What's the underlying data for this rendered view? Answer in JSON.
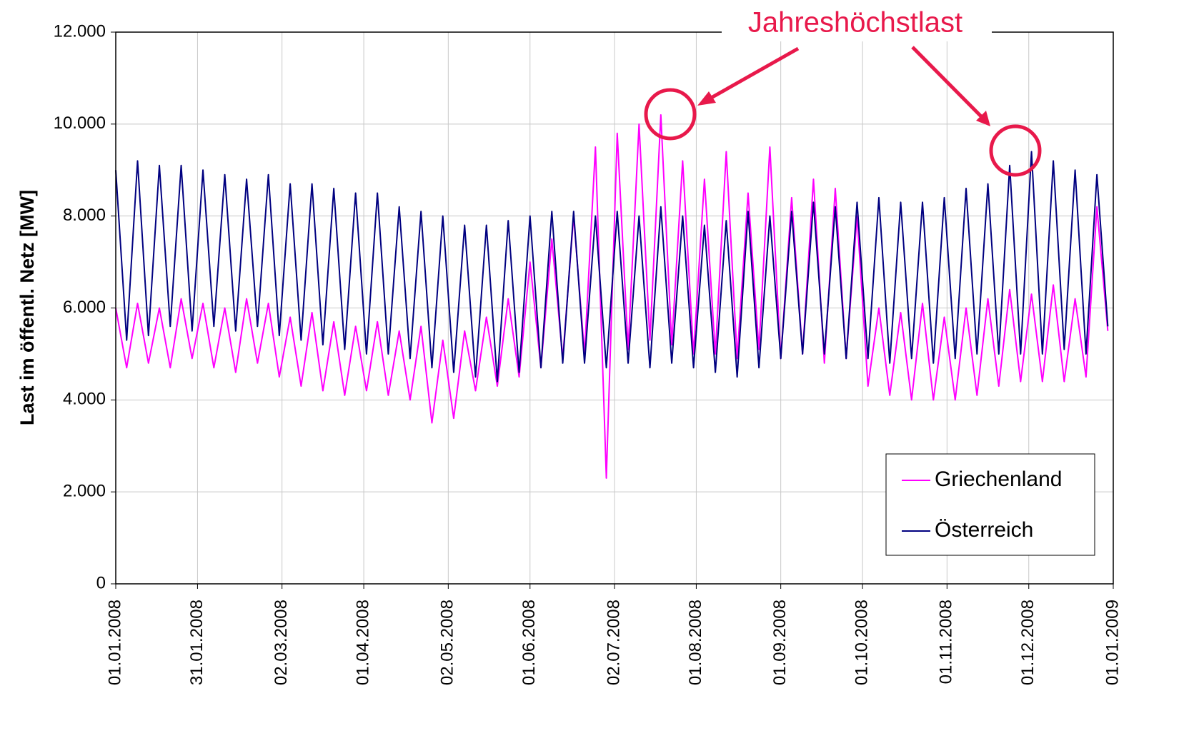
{
  "chart_data": {
    "type": "line",
    "ylabel": "Last im öffentl. Netz [MW]",
    "annotation": "Jahreshöchstlast",
    "ylim": [
      0,
      12000
    ],
    "yticks": [
      0,
      {
        "value": 2000,
        "label": "2.000"
      },
      {
        "value": 4000,
        "label": "4.000"
      },
      {
        "value": 6000,
        "label": "6.000"
      },
      {
        "value": 8000,
        "label": "8.000"
      },
      {
        "value": 10000,
        "label": "10.000"
      },
      {
        "value": 12000,
        "label": "12.000"
      }
    ],
    "xlim": [
      "01.01.2008",
      "01.01.2009"
    ],
    "xticks": [
      "01.01.2008",
      "31.01.2008",
      "02.03.2008",
      "01.04.2008",
      "02.05.2008",
      "01.06.2008",
      "02.07.2008",
      "01.08.2008",
      "01.09.2008",
      "01.10.2008",
      "01.11.2008",
      "01.12.2008",
      "01.01.2009"
    ],
    "grid": true,
    "legend": "lower right",
    "x": [
      "01.01.2008",
      "05.01.2008",
      "09.01.2008",
      "13.01.2008",
      "17.01.2008",
      "21.01.2008",
      "25.01.2008",
      "29.01.2008",
      "02.02.2008",
      "06.02.2008",
      "10.02.2008",
      "14.02.2008",
      "18.02.2008",
      "22.02.2008",
      "26.02.2008",
      "01.03.2008",
      "05.03.2008",
      "09.03.2008",
      "13.03.2008",
      "17.03.2008",
      "21.03.2008",
      "25.03.2008",
      "29.03.2008",
      "02.04.2008",
      "06.04.2008",
      "10.04.2008",
      "14.04.2008",
      "18.04.2008",
      "22.04.2008",
      "26.04.2008",
      "30.04.2008",
      "04.05.2008",
      "08.05.2008",
      "12.05.2008",
      "16.05.2008",
      "20.05.2008",
      "24.05.2008",
      "28.05.2008",
      "01.06.2008",
      "05.06.2008",
      "09.06.2008",
      "13.06.2008",
      "17.06.2008",
      "21.06.2008",
      "25.06.2008",
      "29.06.2008",
      "03.07.2008",
      "07.07.2008",
      "11.07.2008",
      "15.07.2008",
      "19.07.2008",
      "23.07.2008",
      "27.07.2008",
      "31.07.2008",
      "04.08.2008",
      "08.08.2008",
      "12.08.2008",
      "16.08.2008",
      "20.08.2008",
      "24.08.2008",
      "28.08.2008",
      "01.09.2008",
      "05.09.2008",
      "09.09.2008",
      "13.09.2008",
      "17.09.2008",
      "21.09.2008",
      "25.09.2008",
      "29.09.2008",
      "03.10.2008",
      "07.10.2008",
      "11.10.2008",
      "15.10.2008",
      "19.10.2008",
      "23.10.2008",
      "27.10.2008",
      "31.10.2008",
      "04.11.2008",
      "08.11.2008",
      "12.11.2008",
      "16.11.2008",
      "20.11.2008",
      "24.11.2008",
      "28.11.2008",
      "02.12.2008",
      "06.12.2008",
      "10.12.2008",
      "14.12.2008",
      "18.12.2008",
      "22.12.2008",
      "26.12.2008",
      "30.12.2008"
    ],
    "series": [
      {
        "name": "Griechenland",
        "color": "#ff00ff",
        "values": [
          6000,
          4700,
          6100,
          4800,
          6000,
          4700,
          6200,
          4900,
          6100,
          4700,
          6000,
          4600,
          6200,
          4800,
          6100,
          4500,
          5800,
          4300,
          5900,
          4200,
          5700,
          4100,
          5600,
          4200,
          5700,
          4100,
          5500,
          4000,
          5600,
          3500,
          5300,
          3600,
          5500,
          4200,
          5800,
          4300,
          6200,
          4500,
          7000,
          4700,
          7500,
          4900,
          8000,
          5000,
          9500,
          2300,
          9800,
          5100,
          10000,
          5300,
          10200,
          5200,
          9200,
          5000,
          8800,
          5000,
          9400,
          4900,
          8500,
          5100,
          9500,
          4900,
          8400,
          5000,
          8800,
          4800,
          8600,
          4900,
          8000,
          4300,
          6000,
          4100,
          5900,
          4000,
          6100,
          4000,
          5800,
          4000,
          6000,
          4100,
          6200,
          4300,
          6400,
          4400,
          6300,
          4400,
          6500,
          4400,
          6200,
          4500,
          8200,
          5500
        ]
      },
      {
        "name": "Österreich",
        "color": "#000080",
        "values": [
          9000,
          5300,
          9200,
          5400,
          9100,
          5600,
          9100,
          5500,
          9000,
          5600,
          8900,
          5500,
          8800,
          5600,
          8900,
          5400,
          8700,
          5300,
          8700,
          5200,
          8600,
          5100,
          8500,
          5000,
          8500,
          5000,
          8200,
          4900,
          8100,
          4700,
          8000,
          4600,
          7800,
          4500,
          7800,
          4400,
          7900,
          4600,
          8000,
          4700,
          8100,
          4800,
          8100,
          4800,
          8000,
          4700,
          8100,
          4800,
          8000,
          4700,
          8200,
          4800,
          8000,
          4700,
          7800,
          4600,
          7900,
          4500,
          8100,
          4700,
          8000,
          4900,
          8100,
          5000,
          8300,
          5000,
          8200,
          4900,
          8300,
          4900,
          8400,
          4800,
          8300,
          4900,
          8300,
          4800,
          8400,
          4900,
          8600,
          5000,
          8700,
          5000,
          9100,
          5000,
          9400,
          5000,
          9200,
          5100,
          9000,
          5000,
          8900,
          5600
        ]
      }
    ]
  }
}
